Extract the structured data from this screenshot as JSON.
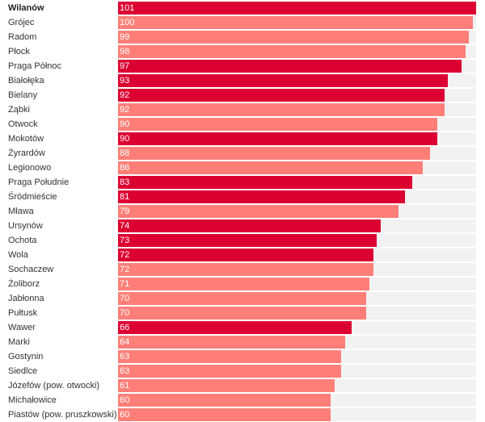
{
  "chart_data": {
    "type": "bar",
    "orientation": "horizontal",
    "categories": [
      "Wilanów",
      "Grójec",
      "Radom",
      "Płock",
      "Praga Północ",
      "Białołęka",
      "Bielany",
      "Ząbki",
      "Otwock",
      "Mokotów",
      "Żyrardów",
      "Legionowo",
      "Praga Południe",
      "Śródmieście",
      "Mława",
      "Ursynów",
      "Ochota",
      "Wola",
      "Sochaczew",
      "Żoliborz",
      "Jabłonna",
      "Pułtusk",
      "Wawer",
      "Marki",
      "Gostynin",
      "Siedlce",
      "Józefów (pow. otwocki)",
      "Michałowice",
      "Piastów (pow. pruszkowski)"
    ],
    "values": [
      101,
      100,
      99,
      98,
      97,
      93,
      92,
      92,
      90,
      90,
      88,
      86,
      83,
      81,
      79,
      74,
      73,
      72,
      72,
      71,
      70,
      70,
      66,
      64,
      63,
      63,
      61,
      60,
      60
    ],
    "value_labels": [
      "101",
      "100",
      "99",
      "98",
      "97",
      "93",
      "92",
      "92",
      "90",
      "90",
      "88",
      "86",
      "83",
      "81",
      "79",
      "74",
      "73",
      "72",
      "72",
      "71",
      "70",
      "70",
      "66",
      "64",
      "63",
      "63",
      "61",
      "60",
      "60"
    ],
    "highlighted": [
      true,
      false,
      false,
      false,
      true,
      true,
      true,
      false,
      false,
      true,
      false,
      false,
      true,
      true,
      false,
      true,
      true,
      true,
      false,
      false,
      false,
      false,
      true,
      false,
      false,
      false,
      false,
      false,
      false
    ],
    "xlim": [
      0,
      101
    ],
    "colors": {
      "highlight": "#dc0032",
      "normal": "#ff7f78",
      "track": "#f2f2f2"
    },
    "bold_category": "Wilanów",
    "title": "",
    "xlabel": "",
    "ylabel": ""
  }
}
